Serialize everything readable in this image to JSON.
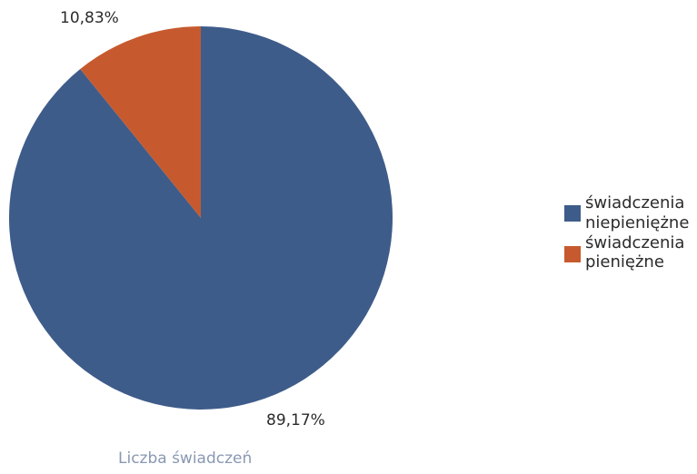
{
  "chart_data": {
    "type": "pie",
    "caption": "Liczba świadczeń",
    "legend_position": "right",
    "slices": [
      {
        "name_lines": [
          "świadczenia",
          "niepieniężne"
        ],
        "value": 89.17,
        "label": "89,17%",
        "color": "#3e5c8a"
      },
      {
        "name_lines": [
          "świadczenia",
          "pieniężne"
        ],
        "value": 10.83,
        "label": "10,83%",
        "color": "#c65a2e"
      }
    ]
  }
}
